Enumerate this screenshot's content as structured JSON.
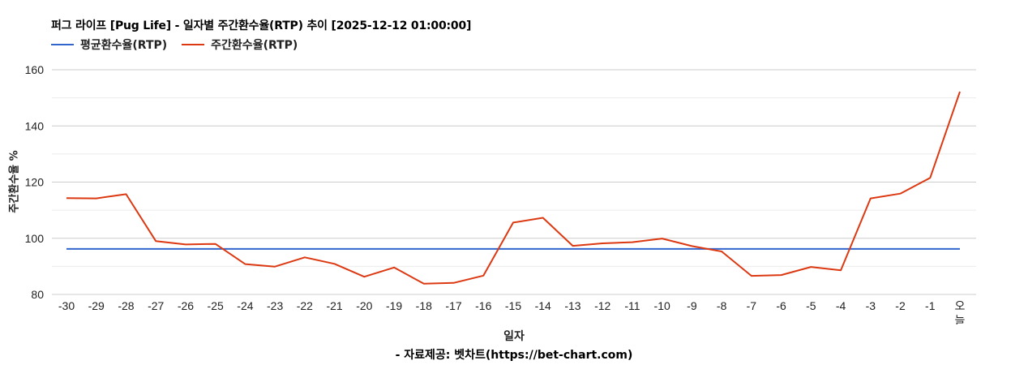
{
  "header": {
    "title": "퍼그 라이프 [Pug Life] - 일자별 주간환수율(RTP) 추이 [2025-12-12 01:00:00]"
  },
  "legend": [
    {
      "label": "평균환수율(RTP)",
      "color": "#3366cc"
    },
    {
      "label": "주간환수율(RTP)",
      "color": "#dc3912"
    }
  ],
  "axes": {
    "ylabel": "주간환수율 %",
    "xlabel": "일자"
  },
  "footer": {
    "credit": "- 자료제공: 벳차트(https://bet-chart.com)"
  },
  "chart_data": {
    "type": "line",
    "title": "퍼그 라이프 [Pug Life] - 일자별 주간환수율(RTP) 추이 [2025-12-12 01:00:00]",
    "xlabel": "일자",
    "ylabel": "주간환수율 %",
    "ylim": [
      80,
      160
    ],
    "yticks": [
      80,
      100,
      120,
      140,
      160
    ],
    "minor_gridlines": [
      90,
      110,
      130,
      150
    ],
    "grid": true,
    "legend_position": "top",
    "categories": [
      "-30",
      "-29",
      "-28",
      "-27",
      "-26",
      "-25",
      "-24",
      "-23",
      "-22",
      "-21",
      "-20",
      "-19",
      "-18",
      "-17",
      "-16",
      "-15",
      "-14",
      "-13",
      "-12",
      "-11",
      "-10",
      "-9",
      "-8",
      "-7",
      "-6",
      "-5",
      "-4",
      "-3",
      "-2",
      "-1",
      "오늘"
    ],
    "series": [
      {
        "name": "평균환수율(RTP)",
        "color": "#3366cc",
        "values": [
          96.2,
          96.2,
          96.2,
          96.2,
          96.2,
          96.2,
          96.2,
          96.2,
          96.2,
          96.2,
          96.2,
          96.2,
          96.2,
          96.2,
          96.2,
          96.2,
          96.2,
          96.2,
          96.2,
          96.2,
          96.2,
          96.2,
          96.2,
          96.2,
          96.2,
          96.2,
          96.2,
          96.2,
          96.2,
          96.2,
          96.2
        ]
      },
      {
        "name": "주간환수율(RTP)",
        "color": "#dc3912",
        "values": [
          114.3,
          114.2,
          115.7,
          99.0,
          97.8,
          98.0,
          90.8,
          89.9,
          93.2,
          90.9,
          86.3,
          89.6,
          83.8,
          84.1,
          86.7,
          105.6,
          107.3,
          97.3,
          98.2,
          98.6,
          99.9,
          97.2,
          95.3,
          86.6,
          86.9,
          89.8,
          88.6,
          114.2,
          115.9,
          121.5,
          152.2
        ]
      }
    ]
  }
}
